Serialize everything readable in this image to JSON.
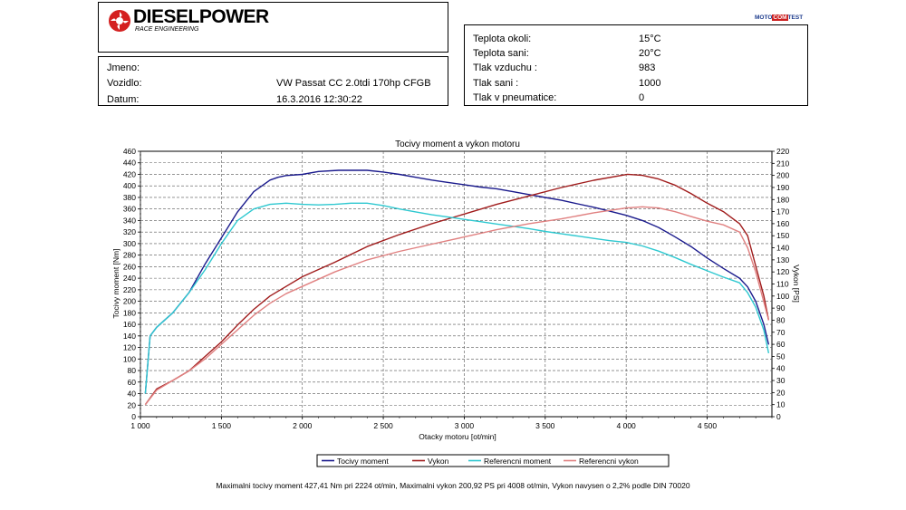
{
  "brand": {
    "name": "DIESELPOWER",
    "tagline": "RACE ENGINEERING",
    "badge_left": "MOTO",
    "badge_mid": "COM",
    "badge_right": "TEST"
  },
  "vehicle": {
    "name_label": "Jmeno:",
    "name_value": "",
    "vehicle_label": "Vozidlo:",
    "vehicle_value": "VW Passat CC 2.0tdi 170hp CFGB",
    "date_label": "Datum:",
    "date_value": "16.3.2016 12:30:22"
  },
  "conditions": [
    {
      "label": "Teplota okoli:",
      "value": "15°C"
    },
    {
      "label": "Teplota sani:",
      "value": "20°C"
    },
    {
      "label": "Tlak vzduchu :",
      "value": "983"
    },
    {
      "label": "Tlak sani :",
      "value": "1000"
    },
    {
      "label": "Tlak v pneumatice:",
      "value": "0"
    }
  ],
  "footer": "Maximalni tocivy moment 427,41 Nm pri 2224 ot/min,  Maximalni vykon 200,92 PS pri 4008 ot/min,  Vykon navysen o 2,2% podle DIN 70020",
  "chart_data": {
    "type": "line",
    "title": "Tocivy moment a vykon motoru",
    "xlabel": "Otacky motoru [ot/min]",
    "ylabel": "Tocivy moment [Nm]",
    "y2label": "Vykon [PS]",
    "xlim": [
      1000,
      4900
    ],
    "ylim": [
      0,
      460
    ],
    "y2lim": [
      0,
      220
    ],
    "xticks": [
      1000,
      1500,
      2000,
      2500,
      3000,
      3500,
      4000,
      4500
    ],
    "xtick_labels": [
      "1 000",
      "1 500",
      "2 000",
      "2 500",
      "3 000",
      "3 500",
      "4 000",
      "4 500"
    ],
    "yticks": [
      0,
      20,
      40,
      60,
      80,
      100,
      120,
      140,
      160,
      180,
      200,
      220,
      240,
      260,
      280,
      300,
      320,
      340,
      360,
      380,
      400,
      420,
      440,
      460
    ],
    "y2ticks": [
      0,
      10,
      20,
      30,
      40,
      50,
      60,
      70,
      80,
      90,
      100,
      110,
      120,
      130,
      140,
      150,
      160,
      170,
      180,
      190,
      200,
      210,
      220
    ],
    "grid": true,
    "legend": "bottom-center",
    "series": [
      {
        "name": "Tocivy moment",
        "axis": "left",
        "color": "#1a1a8c",
        "x": [
          1030,
          1060,
          1100,
          1200,
          1300,
          1400,
          1500,
          1600,
          1700,
          1800,
          1850,
          1900,
          2000,
          2100,
          2224,
          2300,
          2400,
          2500,
          2600,
          2700,
          2800,
          2900,
          3000,
          3100,
          3200,
          3300,
          3400,
          3500,
          3600,
          3700,
          3800,
          3900,
          4000,
          4100,
          4200,
          4300,
          4400,
          4500,
          4600,
          4700,
          4750,
          4800,
          4850,
          4880
        ],
        "y": [
          40,
          140,
          155,
          180,
          215,
          265,
          310,
          355,
          390,
          410,
          415,
          418,
          420,
          425,
          427,
          427,
          427,
          424,
          420,
          415,
          410,
          406,
          402,
          398,
          395,
          390,
          385,
          380,
          375,
          369,
          363,
          356,
          349,
          340,
          328,
          312,
          295,
          275,
          257,
          240,
          225,
          200,
          160,
          125
        ]
      },
      {
        "name": "Vykon",
        "axis": "right",
        "color": "#a01c1c",
        "x": [
          1030,
          1100,
          1200,
          1300,
          1400,
          1500,
          1600,
          1700,
          1800,
          1900,
          2000,
          2200,
          2400,
          2600,
          2800,
          3000,
          3200,
          3400,
          3600,
          3800,
          4008,
          4100,
          4200,
          4300,
          4400,
          4500,
          4600,
          4700,
          4750,
          4800,
          4850,
          4880
        ],
        "y": [
          10,
          23,
          30,
          38,
          50,
          62,
          76,
          89,
          100,
          108,
          116,
          128,
          141,
          151,
          160,
          168,
          176,
          183,
          190,
          196,
          200.9,
          200,
          197,
          192,
          185,
          177,
          170,
          160,
          150,
          125,
          100,
          80
        ]
      },
      {
        "name": "Referencni moment",
        "axis": "left",
        "color": "#2ec8d0",
        "x": [
          1030,
          1060,
          1100,
          1200,
          1300,
          1400,
          1500,
          1600,
          1700,
          1800,
          1900,
          2000,
          2100,
          2200,
          2300,
          2400,
          2500,
          2600,
          2700,
          2800,
          2900,
          3000,
          3100,
          3200,
          3300,
          3400,
          3500,
          3600,
          3700,
          3800,
          3900,
          4000,
          4100,
          4200,
          4300,
          4400,
          4500,
          4600,
          4700,
          4750,
          4800,
          4850,
          4880
        ],
        "y": [
          40,
          140,
          155,
          180,
          215,
          255,
          300,
          340,
          360,
          368,
          370,
          368,
          367,
          368,
          370,
          370,
          366,
          360,
          355,
          350,
          346,
          342,
          338,
          334,
          330,
          326,
          321,
          317,
          313,
          309,
          305,
          302,
          296,
          287,
          276,
          264,
          253,
          242,
          232,
          215,
          190,
          150,
          110
        ]
      },
      {
        "name": "Referencni vykon",
        "axis": "right",
        "color": "#e08080",
        "x": [
          1030,
          1100,
          1200,
          1300,
          1400,
          1500,
          1600,
          1700,
          1800,
          1900,
          2000,
          2200,
          2400,
          2600,
          2800,
          3000,
          3200,
          3400,
          3600,
          3800,
          4000,
          4100,
          4200,
          4300,
          4400,
          4500,
          4600,
          4700,
          4750,
          4800,
          4850,
          4880
        ],
        "y": [
          10,
          22,
          30,
          38,
          48,
          60,
          72,
          84,
          94,
          102,
          108,
          120,
          130,
          137,
          143,
          149,
          155,
          160,
          164,
          169,
          173,
          174,
          173,
          170,
          166,
          162,
          159,
          153,
          140,
          120,
          95,
          80
        ]
      }
    ]
  }
}
